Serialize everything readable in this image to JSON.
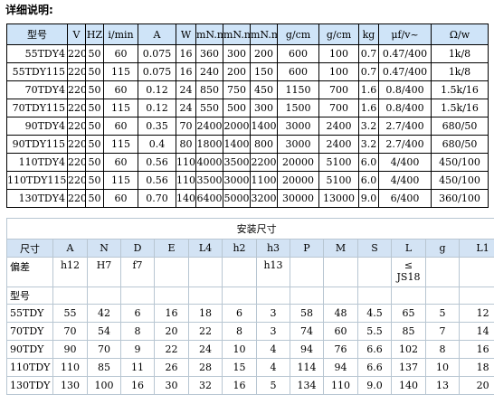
{
  "title": "详细说明:",
  "spec_table": {
    "headers": [
      "型号",
      "V",
      "HZ",
      "i/min",
      "A",
      "W",
      "mN.m",
      "mN.m",
      "mN.m",
      "g/cm",
      "g/cm",
      "kg",
      "μf/v~",
      "Ω/w"
    ],
    "rows": [
      [
        "55TDY4",
        "220",
        "50",
        "60",
        "0.075",
        "16",
        "360",
        "300",
        "200",
        "600",
        "100",
        "0.7",
        "0.47/400",
        "1k/8"
      ],
      [
        "55TDY115",
        "220",
        "50",
        "115",
        "0.075",
        "16",
        "240",
        "200",
        "150",
        "600",
        "100",
        "0.7",
        "0.47/400",
        "1k/8"
      ],
      [
        "70TDY4",
        "220",
        "50",
        "60",
        "0.12",
        "24",
        "850",
        "750",
        "450",
        "1150",
        "700",
        "1.6",
        "0.8/400",
        "1.5k/16"
      ],
      [
        "70TDY115",
        "220",
        "50",
        "115",
        "0.12",
        "24",
        "550",
        "500",
        "300",
        "1500",
        "700",
        "1.6",
        "0.8/400",
        "1.5k/16"
      ],
      [
        "90TDY4",
        "220",
        "50",
        "60",
        "0.35",
        "70",
        "2400",
        "2000",
        "1400",
        "3000",
        "2400",
        "3.2",
        "2.7/400",
        "680/50"
      ],
      [
        "90TDY115",
        "220",
        "50",
        "115",
        "0.4",
        "80",
        "1800",
        "1400",
        "800",
        "3000",
        "2400",
        "3.2",
        "2.7/400",
        "680/50"
      ],
      [
        "110TDY4",
        "220",
        "50",
        "60",
        "0.56",
        "110",
        "4000",
        "3500",
        "2200",
        "20000",
        "5100",
        "6.0",
        "4/400",
        "450/100"
      ],
      [
        "110TDY115",
        "220",
        "50",
        "115",
        "0.56",
        "110",
        "3500",
        "3000",
        "1100",
        "20000",
        "5100",
        "6.0",
        "4/400",
        "450/100"
      ],
      [
        "130TDY4",
        "220",
        "50",
        "60",
        "0.70",
        "140",
        "6400",
        "5000",
        "3200",
        "30000",
        "13000",
        "9.0",
        "6/400",
        "360/100"
      ]
    ]
  },
  "install_table": {
    "caption": "安装尺寸",
    "headers": [
      "尺寸",
      "A",
      "N",
      "D",
      "E",
      "L4",
      "h2",
      "h3",
      "P",
      "M",
      "S",
      "L",
      "g",
      "L1"
    ],
    "tolerance_label": "偏差",
    "tolerances": [
      "h12",
      "H7",
      "f7",
      "",
      "",
      "",
      "h13",
      "",
      "",
      "",
      "≤ JS18",
      "",
      ""
    ],
    "model_label": "型号",
    "rows": [
      [
        "55TDY",
        "55",
        "42",
        "6",
        "16",
        "18",
        "6",
        "3",
        "58",
        "48",
        "4.5",
        "65",
        "5",
        "12"
      ],
      [
        "70TDY",
        "70",
        "54",
        "8",
        "20",
        "22",
        "8",
        "3",
        "74",
        "60",
        "5.5",
        "85",
        "7",
        "14"
      ],
      [
        "90TDY",
        "90",
        "70",
        "9",
        "22",
        "24",
        "10",
        "4",
        "94",
        "76",
        "6.6",
        "102",
        "8",
        "16"
      ],
      [
        "110TDY",
        "110",
        "85",
        "11",
        "26",
        "28",
        "15",
        "4",
        "114",
        "94",
        "6.6",
        "137",
        "10",
        "18"
      ],
      [
        "130TDY",
        "130",
        "100",
        "16",
        "30",
        "32",
        "16",
        "5",
        "134",
        "110",
        "9.0",
        "140",
        "13",
        "20"
      ]
    ]
  }
}
